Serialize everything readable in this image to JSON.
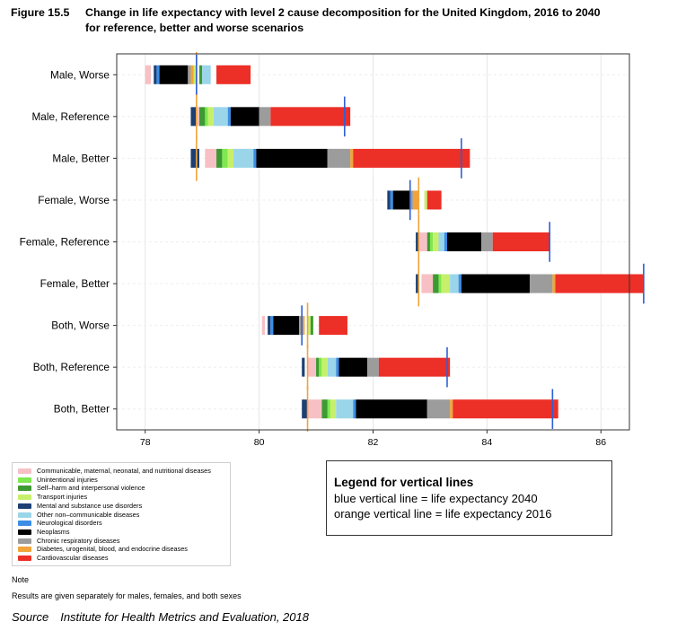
{
  "figure": {
    "number": "Figure 15.5",
    "title_line1": "Change in life expectancy with level 2 cause decomposition for the United Kingdom, 2016 to 2040",
    "title_line2": "for reference, better and worse scenarios"
  },
  "colors": {
    "cmnn": "#f7c0c5",
    "unintentional": "#7fe84f",
    "selfharm": "#3d9a32",
    "transport": "#c6f06b",
    "mental": "#1d3f73",
    "other_ncd": "#9bd5ea",
    "neuro": "#3b8de6",
    "neoplasms": "#000000",
    "chronic_resp": "#9c9c9c",
    "diabetes": "#f0a43a",
    "cardio": "#ec2f27",
    "line_2040": "#2f5fd6",
    "line_2016": "#f0a43a"
  },
  "chart_data": {
    "type": "bar",
    "orientation": "horizontal-stacked-decomposition",
    "xlim": [
      77.5,
      86.5
    ],
    "xticks": [
      "78",
      "80",
      "82",
      "84",
      "86"
    ],
    "grid": true,
    "categories": [
      "Male, Worse",
      "Male, Reference",
      "Male, Better",
      "Female, Worse",
      "Female, Reference",
      "Female, Better",
      "Both, Worse",
      "Both, Reference",
      "Both, Better"
    ],
    "le_2016": [
      78.9,
      78.9,
      78.9,
      82.8,
      82.8,
      82.8,
      80.85,
      80.85,
      80.85
    ],
    "le_2040": [
      78.9,
      81.5,
      83.55,
      82.65,
      85.1,
      86.75,
      80.75,
      83.3,
      85.15
    ],
    "series": [
      {
        "name": "Communicable, maternal, neonatal, and nutritional diseases",
        "key": "cmnn",
        "intervals": [
          [
            78.0,
            78.1
          ],
          [
            78.9,
            78.95
          ],
          [
            79.05,
            79.25
          ],
          [
            82.8,
            82.8
          ],
          [
            82.8,
            82.95
          ],
          [
            82.85,
            83.05
          ],
          [
            80.05,
            80.1
          ],
          [
            80.85,
            81.0
          ],
          [
            80.85,
            81.1
          ]
        ]
      },
      {
        "name": "Unintentional injuries",
        "key": "unintentional",
        "intervals": [
          [
            78.85,
            78.85
          ],
          [
            79.05,
            79.1
          ],
          [
            79.35,
            79.45
          ],
          [
            82.95,
            82.95
          ],
          [
            83.0,
            83.05
          ],
          [
            83.15,
            83.2
          ],
          [
            80.85,
            80.85
          ],
          [
            81.05,
            81.1
          ],
          [
            81.2,
            81.25
          ]
        ]
      },
      {
        "name": "Self–harm and interpersonal violence",
        "key": "selfharm",
        "intervals": [
          [
            78.95,
            79.0
          ],
          [
            78.95,
            79.05
          ],
          [
            79.25,
            79.35
          ],
          [
            82.95,
            82.95
          ],
          [
            82.95,
            83.0
          ],
          [
            83.05,
            83.15
          ],
          [
            80.9,
            80.95
          ],
          [
            81.0,
            81.05
          ],
          [
            81.1,
            81.2
          ]
        ]
      },
      {
        "name": "Transport injuries",
        "key": "transport",
        "intervals": [
          [
            78.85,
            78.9
          ],
          [
            79.1,
            79.2
          ],
          [
            79.45,
            79.55
          ],
          [
            82.9,
            82.95
          ],
          [
            83.05,
            83.15
          ],
          [
            83.2,
            83.35
          ],
          [
            80.85,
            80.9
          ],
          [
            81.1,
            81.2
          ],
          [
            81.25,
            81.35
          ]
        ]
      },
      {
        "name": "Mental and substance use disorders",
        "key": "mental",
        "intervals": [
          [
            78.15,
            78.2
          ],
          [
            78.8,
            78.9
          ],
          [
            78.8,
            78.95
          ],
          [
            82.25,
            82.3
          ],
          [
            82.75,
            82.8
          ],
          [
            82.75,
            82.8
          ],
          [
            80.15,
            80.2
          ],
          [
            80.75,
            80.8
          ],
          [
            80.75,
            80.85
          ]
        ]
      },
      {
        "name": "Other non–communicable diseases",
        "key": "other_ncd",
        "intervals": [
          [
            79.0,
            79.15
          ],
          [
            79.2,
            79.45
          ],
          [
            79.55,
            79.9
          ],
          [
            82.95,
            82.95
          ],
          [
            83.15,
            83.25
          ],
          [
            83.35,
            83.5
          ],
          [
            80.95,
            80.95
          ],
          [
            81.2,
            81.35
          ],
          [
            81.35,
            81.65
          ]
        ]
      },
      {
        "name": "Neurological disorders",
        "key": "neuro",
        "intervals": [
          [
            78.2,
            78.25
          ],
          [
            79.45,
            79.5
          ],
          [
            79.9,
            79.95
          ],
          [
            82.3,
            82.35
          ],
          [
            83.25,
            83.3
          ],
          [
            83.5,
            83.55
          ],
          [
            80.2,
            80.25
          ],
          [
            81.35,
            81.4
          ],
          [
            81.65,
            81.7
          ]
        ]
      },
      {
        "name": "Neoplasms",
        "key": "neoplasms",
        "intervals": [
          [
            78.25,
            78.75
          ],
          [
            79.5,
            80.0
          ],
          [
            79.95,
            81.2
          ],
          [
            82.35,
            82.65
          ],
          [
            83.3,
            83.9
          ],
          [
            83.55,
            84.75
          ],
          [
            80.25,
            80.7
          ],
          [
            81.4,
            81.9
          ],
          [
            81.7,
            82.95
          ]
        ]
      },
      {
        "name": "Chronic respiratory diseases",
        "key": "chronic_resp",
        "intervals": [
          [
            78.75,
            78.8
          ],
          [
            80.0,
            80.2
          ],
          [
            81.2,
            81.6
          ],
          [
            82.65,
            82.7
          ],
          [
            83.9,
            84.1
          ],
          [
            84.75,
            85.15
          ],
          [
            80.7,
            80.75
          ],
          [
            81.9,
            82.1
          ],
          [
            82.95,
            83.35
          ]
        ]
      },
      {
        "name": "Diabetes, urogenital, blood, and endocrine diseases",
        "key": "diabetes",
        "intervals": [
          [
            78.8,
            78.85
          ],
          [
            80.2,
            80.2
          ],
          [
            81.6,
            81.65
          ],
          [
            82.7,
            82.8
          ],
          [
            84.1,
            84.1
          ],
          [
            85.15,
            85.2
          ],
          [
            80.75,
            80.8
          ],
          [
            82.1,
            82.1
          ],
          [
            83.35,
            83.4
          ]
        ]
      },
      {
        "name": "Cardiovascular diseases",
        "key": "cardio",
        "intervals": [
          [
            79.25,
            79.85
          ],
          [
            80.2,
            81.6
          ],
          [
            81.65,
            83.7
          ],
          [
            82.95,
            83.2
          ],
          [
            84.1,
            85.1
          ],
          [
            85.2,
            86.75
          ],
          [
            81.05,
            81.55
          ],
          [
            82.1,
            83.35
          ],
          [
            83.4,
            85.25
          ]
        ]
      }
    ]
  },
  "legend": {
    "items": [
      {
        "label": "Communicable, maternal, neonatal, and nutritional diseases",
        "color": "#f7c0c5"
      },
      {
        "label": "Unintentional injuries",
        "color": "#7fe84f"
      },
      {
        "label": "Self–harm and interpersonal violence",
        "color": "#3d9a32"
      },
      {
        "label": "Transport injuries",
        "color": "#c6f06b"
      },
      {
        "label": "Mental and substance use disorders",
        "color": "#1d3f73"
      },
      {
        "label": "Other non–communicable diseases",
        "color": "#9bd5ea"
      },
      {
        "label": "Neurological disorders",
        "color": "#3b8de6"
      },
      {
        "label": "Neoplasms",
        "color": "#000000"
      },
      {
        "label": "Chronic respiratory diseases",
        "color": "#9c9c9c"
      },
      {
        "label": "Diabetes, urogenital, blood, and endocrine diseases",
        "color": "#f0a43a"
      },
      {
        "label": "Cardiovascular diseases",
        "color": "#ec2f27"
      }
    ]
  },
  "vline_legend": {
    "title": "Legend for vertical lines",
    "line1": "blue vertical line = life expectancy 2040",
    "line2": "orange vertical line = life expectancy 2016"
  },
  "note_label": "Note",
  "note_text": "Results are given separately for males, females, and both sexes",
  "source_label": "Source",
  "source_text": "Institute for Health Metrics and Evaluation, 2018"
}
